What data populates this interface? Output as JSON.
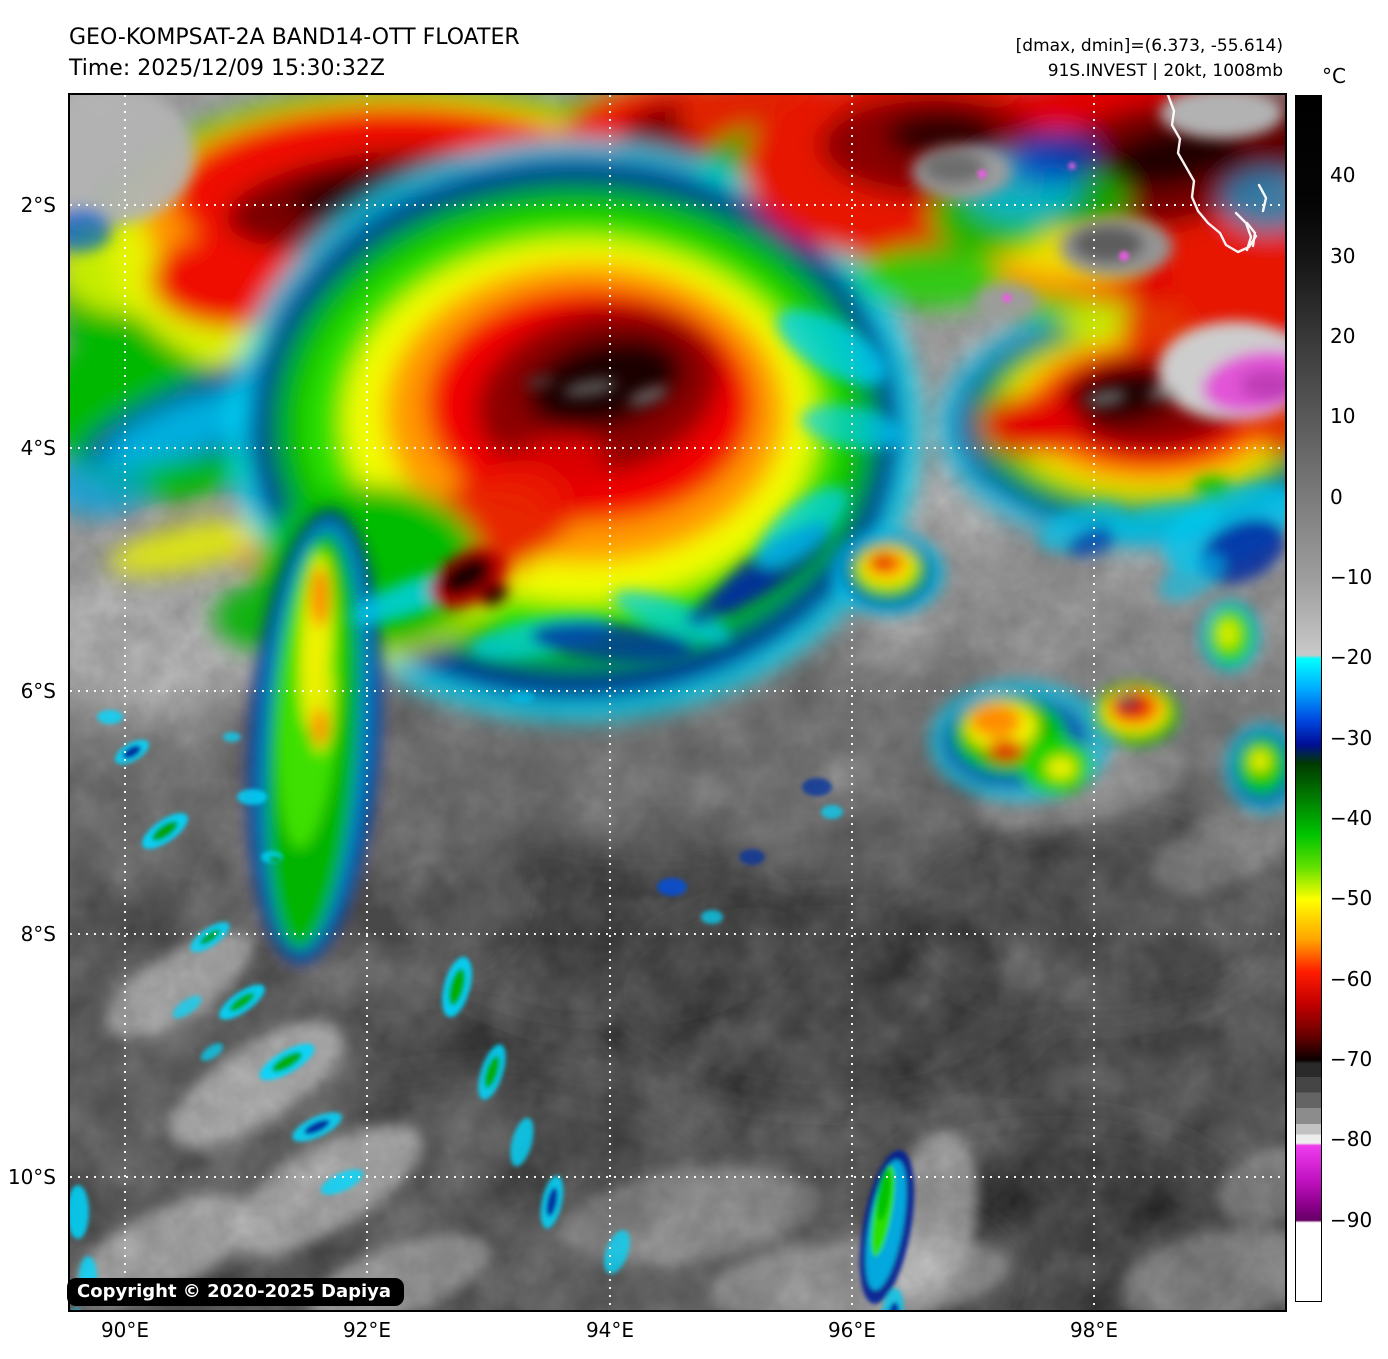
{
  "header": {
    "title": "GEO-KOMPSAT-2A BAND14-OTT FLOATER",
    "time": "Time: 2025/12/09 15:30:32Z",
    "range_info": "[dmax, dmin]=(6.373, -55.614)",
    "storm_info": "91S.INVEST | 20kt, 1008mb"
  },
  "axes": {
    "lat_ticks": [
      "2°S",
      "4°S",
      "6°S",
      "8°S",
      "10°S"
    ],
    "lon_ticks": [
      "90°E",
      "92°E",
      "94°E",
      "96°E",
      "98°E"
    ]
  },
  "colorbar": {
    "unit": "°C",
    "ticks": [
      "40",
      "30",
      "20",
      "10",
      "0",
      "−10",
      "−20",
      "−30",
      "−40",
      "−50",
      "−60",
      "−70",
      "−80",
      "−90"
    ]
  },
  "overlay": {
    "copyright": "Copyright © 2020-2025 Dapiya"
  },
  "palette": {
    "cyan": "#00ffff",
    "blue": "#0048e0",
    "navy": "#000e96",
    "dark_green": "#003a00",
    "green": "#00c400",
    "yellow": "#ffff00",
    "orange": "#ffa400",
    "red": "#ff1c00",
    "dark_red": "#680000",
    "cold_black": "#0c0000",
    "magenta": "#ee3cee",
    "purple": "#8c008c",
    "coldest_white": "#ffffff",
    "grid_line": "#ffffff"
  }
}
